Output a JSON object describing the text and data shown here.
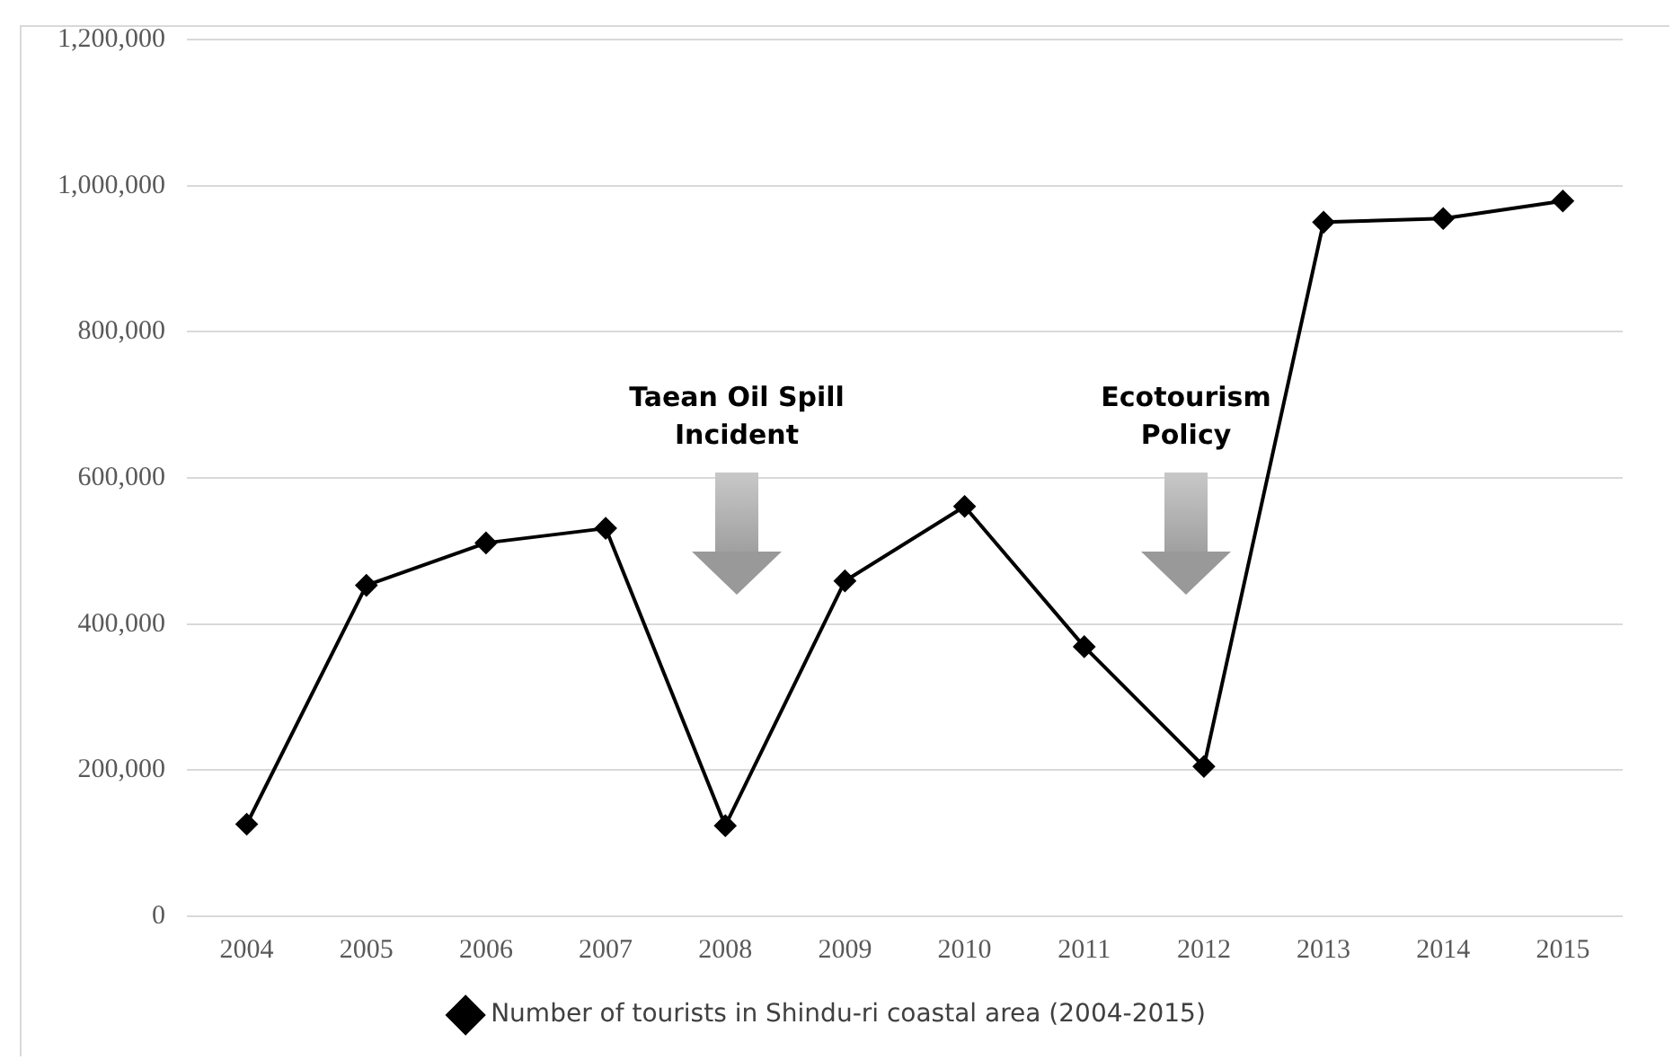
{
  "chart_data": {
    "type": "line",
    "categories": [
      "2004",
      "2005",
      "2006",
      "2007",
      "2008",
      "2009",
      "2010",
      "2011",
      "2012",
      "2013",
      "2014",
      "2015"
    ],
    "series": [
      {
        "name": "Number of tourists in Shindu-ri coastal area (2004-2015)",
        "color": "#000000",
        "values": [
          126000,
          453000,
          511000,
          531000,
          124000,
          459000,
          561000,
          369000,
          205000,
          950000,
          955000,
          979000
        ]
      }
    ],
    "ylim": [
      0,
      1200000
    ],
    "yticks": [
      0,
      {
        "value": 200000,
        "label": "200,000"
      },
      {
        "value": 400000,
        "label": "400,000"
      },
      {
        "value": 600000,
        "label": "600,000"
      },
      {
        "value": 800000,
        "label": "800,000"
      },
      {
        "value": 1000000,
        "label": "1,000,000"
      },
      {
        "value": 1200000,
        "label": "1,200,000"
      }
    ],
    "grid": "y",
    "legend": "bottom",
    "marker": "diamond",
    "line_style": "solid",
    "annotations": [
      "Taean Oil Spill Incident",
      "Ecotourism Policy"
    ]
  }
}
